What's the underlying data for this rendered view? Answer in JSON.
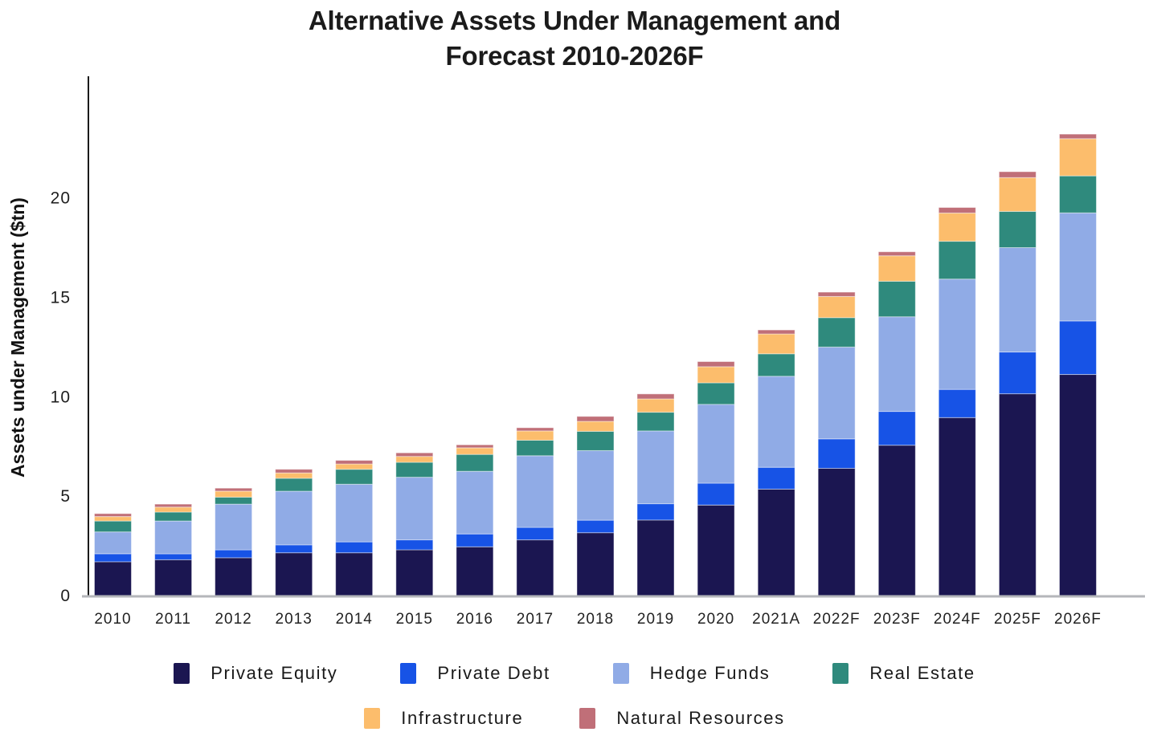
{
  "title_lines": [
    "Alternative Assets Under Management and",
    "Forecast 2010-2026F"
  ],
  "chart_data": {
    "type": "bar",
    "stacked": true,
    "title": "Alternative Assets Under Management and Forecast 2010-2026F",
    "xlabel": "",
    "ylabel": "Assets under Management ($tn)",
    "ylim": [
      0,
      25
    ],
    "yticks": [
      0,
      5,
      10,
      15,
      20
    ],
    "grid": false,
    "legend_position": "bottom",
    "categories": [
      "2010",
      "2011",
      "2012",
      "2013",
      "2014",
      "2015",
      "2016",
      "2017",
      "2018",
      "2019",
      "2020",
      "2021A",
      "2022F",
      "2023F",
      "2024F",
      "2025F",
      "2026F"
    ],
    "series": [
      {
        "name": "Private Equity",
        "color": "#1b1651",
        "values": [
          1.7,
          1.8,
          1.9,
          2.15,
          2.15,
          2.3,
          2.45,
          2.8,
          3.16,
          3.8,
          4.55,
          5.35,
          6.4,
          7.56,
          8.95,
          10.15,
          11.12
        ]
      },
      {
        "name": "Private Debt",
        "color": "#1753e6",
        "values": [
          0.4,
          0.3,
          0.4,
          0.4,
          0.55,
          0.5,
          0.65,
          0.63,
          0.63,
          0.82,
          1.1,
          1.1,
          1.48,
          1.7,
          1.42,
          2.1,
          2.69
        ]
      },
      {
        "name": "Hedge Funds",
        "color": "#90abe6",
        "values": [
          1.1,
          1.65,
          2.3,
          2.7,
          2.9,
          3.15,
          3.15,
          3.6,
          3.5,
          3.66,
          3.97,
          4.58,
          4.62,
          4.76,
          5.55,
          5.25,
          5.44
        ]
      },
      {
        "name": "Real Estate",
        "color": "#2f8a7d",
        "values": [
          0.55,
          0.45,
          0.35,
          0.65,
          0.75,
          0.75,
          0.85,
          0.78,
          0.97,
          0.94,
          1.08,
          1.13,
          1.48,
          1.79,
          1.9,
          1.82,
          1.86
        ]
      },
      {
        "name": "Infrastructure",
        "color": "#fcbd6c",
        "values": [
          0.22,
          0.25,
          0.3,
          0.27,
          0.27,
          0.3,
          0.33,
          0.47,
          0.5,
          0.67,
          0.81,
          1.0,
          1.06,
          1.28,
          1.42,
          1.7,
          1.87
        ]
      },
      {
        "name": "Natural Resources",
        "color": "#c06f78",
        "values": [
          0.15,
          0.15,
          0.15,
          0.18,
          0.18,
          0.18,
          0.15,
          0.16,
          0.25,
          0.25,
          0.26,
          0.2,
          0.22,
          0.2,
          0.28,
          0.3,
          0.23
        ]
      }
    ],
    "legend_rows": [
      [
        "Private Equity",
        "Private Debt",
        "Hedge Funds",
        "Real Estate"
      ],
      [
        "Infrastructure",
        "Natural Resources"
      ]
    ],
    "totals": [
      4.12,
      4.6,
      5.4,
      6.35,
      6.8,
      7.18,
      7.58,
      8.44,
      9.01,
      10.14,
      11.77,
      13.36,
      15.26,
      17.29,
      19.52,
      21.32,
      23.21
    ]
  }
}
